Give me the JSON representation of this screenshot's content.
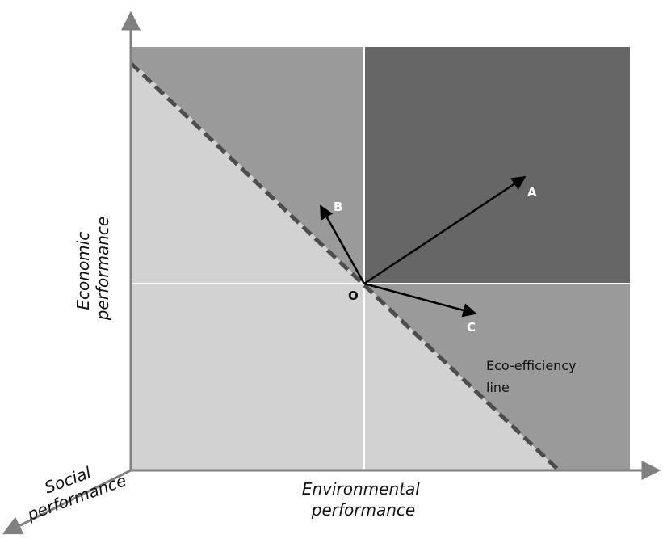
{
  "axes": {
    "y_title_line1": "Economic",
    "y_title_line2": "performance",
    "x_title_line1": "Environmental",
    "x_title_line2": "performance",
    "z_title_line1": "Social",
    "z_title_line2": "performance"
  },
  "origin_label": "O",
  "vectors": [
    {
      "label": "A"
    },
    {
      "label": "B"
    },
    {
      "label": "C"
    }
  ],
  "eco_line_label_line1": "Eco-efficiency",
  "eco_line_label_line2": "line",
  "colors": {
    "light_region": "#d2d2d2",
    "medium_region": "#9a9a9a",
    "dark_region": "#666666",
    "divider": "#ffffff",
    "dashed_line": "#4d4d4d",
    "axis": "#808080",
    "arrow": "#000000"
  }
}
